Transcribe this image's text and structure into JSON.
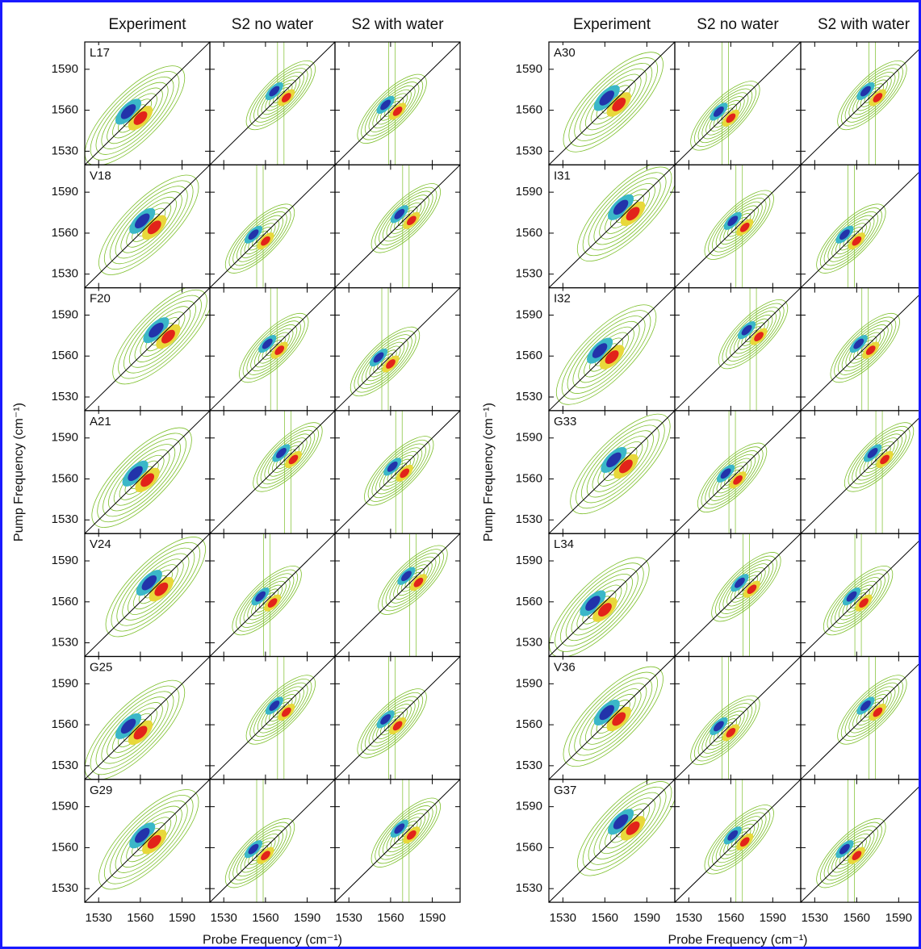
{
  "figures": [
    {
      "columns": [
        "Experiment",
        "S2 no water",
        "S2 with water"
      ],
      "rows": [
        "L17",
        "V18",
        "F20",
        "A21",
        "V24",
        "G25",
        "G29"
      ],
      "xlim": [
        1520,
        1610
      ],
      "ylim": [
        1520,
        1610
      ],
      "xticks": [
        1530,
        1560,
        1590
      ],
      "yticks": [
        1530,
        1560,
        1590
      ],
      "xlabel": "Probe Frequency (cm⁻¹)",
      "ylabel": "Pump Frequency (cm⁻¹)"
    },
    {
      "columns": [
        "Experiment",
        "S2 no water",
        "S2 with water"
      ],
      "rows": [
        "A30",
        "I31",
        "I32",
        "G33",
        "L34",
        "V36",
        "G37"
      ],
      "xlim": [
        1520,
        1610
      ],
      "ylim": [
        1520,
        1610
      ],
      "xticks": [
        1530,
        1560,
        1590
      ],
      "yticks": [
        1530,
        1560,
        1590
      ],
      "xlabel": "Probe Frequency (cm⁻¹)",
      "ylabel": "Pump Frequency (cm⁻¹)"
    }
  ]
}
